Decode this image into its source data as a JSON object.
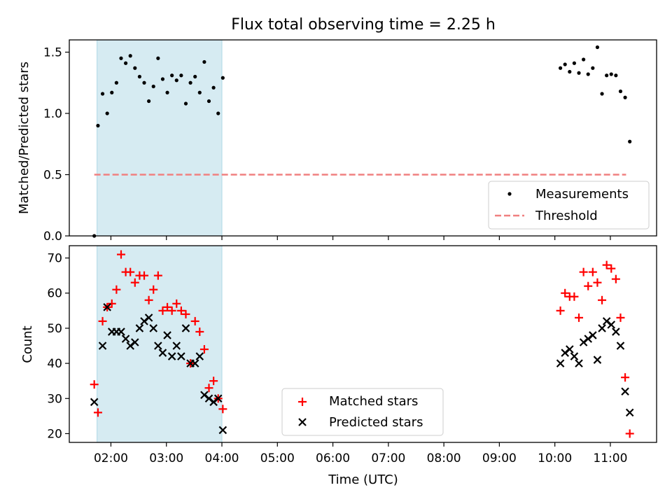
{
  "chart_data": {
    "type": "scatter",
    "title": "Flux total observing time = 2.25 h",
    "xlabel": "Time (UTC)",
    "x_ticks": [
      "02:00",
      "03:00",
      "04:00",
      "05:00",
      "06:00",
      "07:00",
      "08:00",
      "09:00",
      "10:00",
      "11:00"
    ],
    "xlim": [
      "01:15",
      "11:50"
    ],
    "highlight_span": {
      "start": "01:45",
      "end": "04:00",
      "color": "#add8e6"
    },
    "top_panel": {
      "ylabel": "Matched/Predicted stars",
      "ylim": [
        0,
        1.6
      ],
      "y_ticks": [
        "0.0",
        "0.5",
        "1.0",
        "1.5"
      ],
      "grid": false,
      "legend": {
        "placement": "lower-right",
        "entries": [
          "Measurements",
          "Threshold"
        ]
      },
      "threshold": {
        "name": "Threshold",
        "value": 0.5,
        "x_start": "01:42",
        "x_end": "11:17",
        "color": "#f08080",
        "style": "dashed"
      },
      "series": [
        {
          "name": "Measurements",
          "marker": "dot",
          "color": "#000000",
          "points": [
            [
              "01:42",
              0.0
            ],
            [
              "01:46",
              0.9
            ],
            [
              "01:51",
              1.16
            ],
            [
              "01:56",
              1.0
            ],
            [
              "02:01",
              1.17
            ],
            [
              "02:06",
              1.25
            ],
            [
              "02:11",
              1.45
            ],
            [
              "02:16",
              1.41
            ],
            [
              "02:21",
              1.47
            ],
            [
              "02:26",
              1.37
            ],
            [
              "02:31",
              1.3
            ],
            [
              "02:36",
              1.25
            ],
            [
              "02:41",
              1.1
            ],
            [
              "02:46",
              1.22
            ],
            [
              "02:51",
              1.45
            ],
            [
              "02:56",
              1.28
            ],
            [
              "03:01",
              1.17
            ],
            [
              "03:06",
              1.31
            ],
            [
              "03:11",
              1.27
            ],
            [
              "03:16",
              1.31
            ],
            [
              "03:21",
              1.08
            ],
            [
              "03:26",
              1.25
            ],
            [
              "03:31",
              1.3
            ],
            [
              "03:36",
              1.17
            ],
            [
              "03:41",
              1.42
            ],
            [
              "03:46",
              1.1
            ],
            [
              "03:51",
              1.21
            ],
            [
              "03:56",
              1.0
            ],
            [
              "04:01",
              1.29
            ],
            [
              "10:06",
              1.37
            ],
            [
              "10:11",
              1.4
            ],
            [
              "10:16",
              1.34
            ],
            [
              "10:21",
              1.41
            ],
            [
              "10:26",
              1.33
            ],
            [
              "10:31",
              1.44
            ],
            [
              "10:36",
              1.32
            ],
            [
              "10:41",
              1.37
            ],
            [
              "10:46",
              1.54
            ],
            [
              "10:51",
              1.16
            ],
            [
              "10:56",
              1.31
            ],
            [
              "11:01",
              1.32
            ],
            [
              "11:06",
              1.31
            ],
            [
              "11:11",
              1.18
            ],
            [
              "11:16",
              1.13
            ],
            [
              "11:21",
              0.77
            ]
          ]
        }
      ]
    },
    "bottom_panel": {
      "ylabel": "Count",
      "ylim": [
        17.5,
        73.5
      ],
      "y_ticks": [
        "20",
        "30",
        "40",
        "50",
        "60",
        "70"
      ],
      "grid": false,
      "legend": {
        "placement": "lower-center",
        "entries": [
          "Matched stars",
          "Predicted stars"
        ]
      },
      "series": [
        {
          "name": "Matched stars",
          "marker": "plus",
          "color": "#ff0000",
          "points": [
            [
              "01:42",
              34
            ],
            [
              "01:46",
              26
            ],
            [
              "01:51",
              52
            ],
            [
              "01:56",
              56
            ],
            [
              "02:01",
              57
            ],
            [
              "02:06",
              61
            ],
            [
              "02:11",
              71
            ],
            [
              "02:16",
              66
            ],
            [
              "02:21",
              66
            ],
            [
              "02:26",
              63
            ],
            [
              "02:31",
              65
            ],
            [
              "02:36",
              65
            ],
            [
              "02:41",
              58
            ],
            [
              "02:46",
              61
            ],
            [
              "02:51",
              65
            ],
            [
              "02:56",
              55
            ],
            [
              "03:01",
              56
            ],
            [
              "03:06",
              55
            ],
            [
              "03:11",
              57
            ],
            [
              "03:16",
              55
            ],
            [
              "03:21",
              54
            ],
            [
              "03:26",
              40
            ],
            [
              "03:31",
              52
            ],
            [
              "03:36",
              49
            ],
            [
              "03:41",
              44
            ],
            [
              "03:46",
              33
            ],
            [
              "03:51",
              35
            ],
            [
              "03:56",
              30
            ],
            [
              "04:01",
              27
            ],
            [
              "10:06",
              55
            ],
            [
              "10:11",
              60
            ],
            [
              "10:16",
              59
            ],
            [
              "10:21",
              59
            ],
            [
              "10:26",
              53
            ],
            [
              "10:31",
              66
            ],
            [
              "10:36",
              62
            ],
            [
              "10:41",
              66
            ],
            [
              "10:46",
              63
            ],
            [
              "10:51",
              58
            ],
            [
              "10:56",
              68
            ],
            [
              "11:01",
              67
            ],
            [
              "11:06",
              64
            ],
            [
              "11:11",
              53
            ],
            [
              "11:16",
              36
            ],
            [
              "11:21",
              20
            ]
          ]
        },
        {
          "name": "Predicted stars",
          "marker": "x",
          "color": "#000000",
          "points": [
            [
              "01:42",
              29
            ],
            [
              "01:51",
              45
            ],
            [
              "01:56",
              56
            ],
            [
              "02:01",
              49
            ],
            [
              "02:06",
              49
            ],
            [
              "02:11",
              49
            ],
            [
              "02:16",
              47
            ],
            [
              "02:21",
              45
            ],
            [
              "02:26",
              46
            ],
            [
              "02:31",
              50
            ],
            [
              "02:36",
              52
            ],
            [
              "02:41",
              53
            ],
            [
              "02:46",
              50
            ],
            [
              "02:51",
              45
            ],
            [
              "02:56",
              43
            ],
            [
              "03:01",
              48
            ],
            [
              "03:06",
              42
            ],
            [
              "03:11",
              45
            ],
            [
              "03:16",
              42
            ],
            [
              "03:21",
              50
            ],
            [
              "03:26",
              40
            ],
            [
              "03:31",
              40
            ],
            [
              "03:36",
              42
            ],
            [
              "03:41",
              31
            ],
            [
              "03:46",
              30
            ],
            [
              "03:51",
              29
            ],
            [
              "03:56",
              30
            ],
            [
              "04:01",
              21
            ],
            [
              "10:06",
              40
            ],
            [
              "10:11",
              43
            ],
            [
              "10:16",
              44
            ],
            [
              "10:21",
              42
            ],
            [
              "10:26",
              40
            ],
            [
              "10:31",
              46
            ],
            [
              "10:36",
              47
            ],
            [
              "10:41",
              48
            ],
            [
              "10:46",
              41
            ],
            [
              "10:51",
              50
            ],
            [
              "10:56",
              52
            ],
            [
              "11:01",
              51
            ],
            [
              "11:06",
              49
            ],
            [
              "11:11",
              45
            ],
            [
              "11:16",
              32
            ],
            [
              "11:21",
              26
            ]
          ]
        }
      ]
    }
  }
}
